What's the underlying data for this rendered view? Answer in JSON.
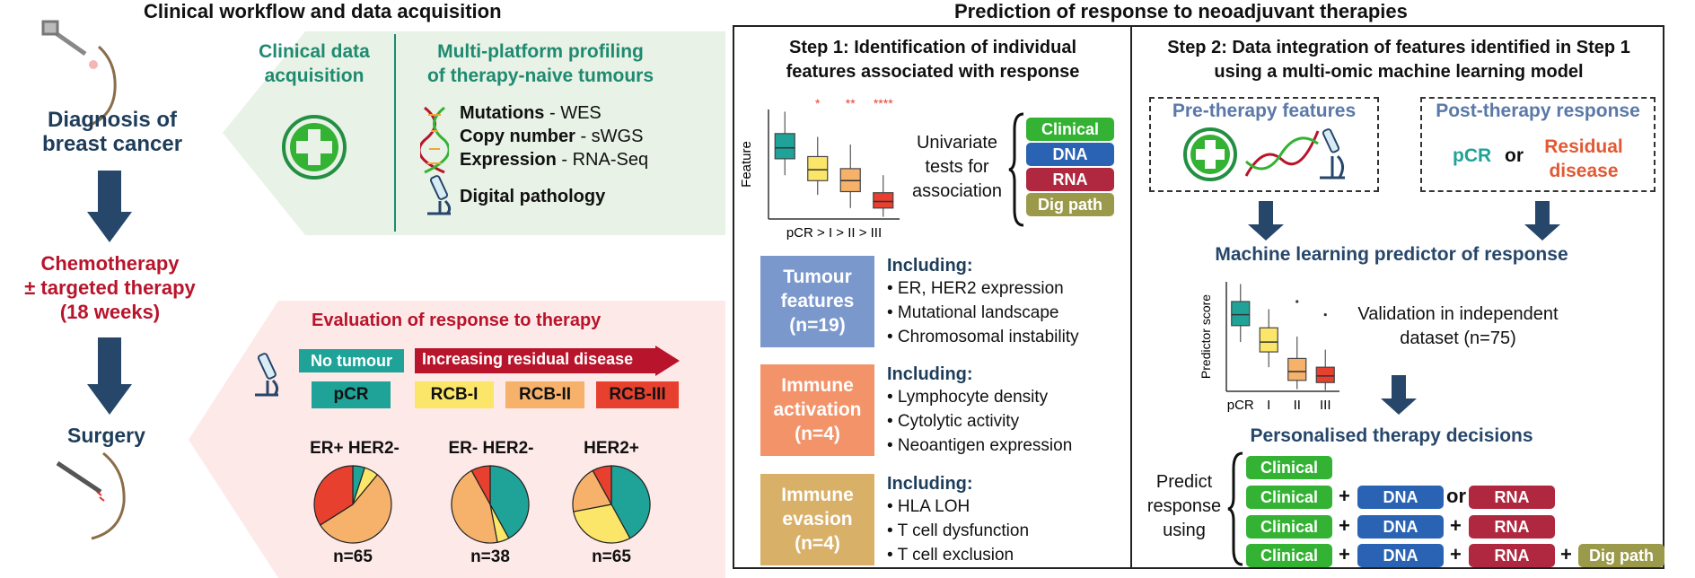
{
  "left": {
    "title": "Clinical workflow and data acquisition",
    "steps": {
      "diagnosis": [
        "Diagnosis of",
        "breast cancer"
      ],
      "chemo": [
        "Chemotherapy",
        "± targeted therapy",
        "(18 weeks)"
      ],
      "surgery": "Surgery"
    },
    "acquisition": {
      "clinical_head": [
        "Clinical data",
        "acquisition"
      ],
      "profiling_head": [
        "Multi-platform profiling",
        "of therapy-naive tumours"
      ],
      "items": [
        {
          "bold": "Mutations",
          "rest": " - WES",
          "icon": "dna-icon"
        },
        {
          "bold": "Copy number",
          "rest": " - sWGS",
          "icon": "dna-icon"
        },
        {
          "bold": "Expression",
          "rest": " - RNA-Seq",
          "icon": "dna-icon"
        },
        {
          "bold": "Digital pathology",
          "rest": "",
          "icon": "microscope-icon"
        }
      ]
    },
    "evaluation": {
      "title": "Evaluation of response to therapy",
      "no_tumour": "No tumour",
      "increasing": "Increasing residual disease",
      "categories": [
        "pCR",
        "RCB-I",
        "RCB-II",
        "RCB-III"
      ],
      "colors": {
        "pCR": "#1fa398",
        "RCB-I": "#fbe66a",
        "RCB-II": "#f6b26b",
        "RCB-III": "#e8402f"
      },
      "pies": [
        {
          "label": "ER+ HER2-",
          "n": "n=65",
          "fractions": [
            0.05,
            0.06,
            0.55,
            0.34
          ]
        },
        {
          "label": "ER- HER2-",
          "n": "n=38",
          "fractions": [
            0.42,
            0.05,
            0.45,
            0.08
          ]
        },
        {
          "label": "HER2+",
          "n": "n=65",
          "fractions": [
            0.42,
            0.3,
            0.2,
            0.08
          ]
        }
      ]
    }
  },
  "right": {
    "title": "Prediction of response to neoadjuvant therapies",
    "step1": {
      "title": [
        "Step 1: Identification of individual",
        "features associated with response"
      ],
      "plot": {
        "ylabel": "Feature",
        "xlabel": "pCR > I  >  II > III",
        "stars": [
          "*",
          "**",
          "****"
        ],
        "boxes": [
          {
            "q1": 0.55,
            "med": 0.65,
            "q3": 0.78,
            "lo": 0.4,
            "hi": 0.98
          },
          {
            "q1": 0.35,
            "med": 0.45,
            "q3": 0.57,
            "lo": 0.22,
            "hi": 0.75
          },
          {
            "q1": 0.25,
            "med": 0.35,
            "q3": 0.46,
            "lo": 0.1,
            "hi": 0.68
          },
          {
            "q1": 0.1,
            "med": 0.16,
            "q3": 0.24,
            "lo": 0.02,
            "hi": 0.4
          }
        ]
      },
      "univariate": [
        "Univariate",
        "tests for",
        "association"
      ],
      "tags": [
        "Clinical",
        "DNA",
        "RNA",
        "Dig path"
      ],
      "groups": [
        {
          "box": [
            "Tumour",
            "features",
            "(n=19)"
          ],
          "color": "#7b98cd",
          "head": "Including:",
          "bullets": [
            "• ER, HER2 expression",
            "• Mutational landscape",
            "• Chromosomal instability"
          ]
        },
        {
          "box": [
            "Immune",
            "activation",
            "(n=4)"
          ],
          "color": "#f3936a",
          "head": "Including:",
          "bullets": [
            "• Lymphocyte density",
            "• Cytolytic activity",
            "• Neoantigen expression"
          ]
        },
        {
          "box": [
            "Immune",
            "evasion",
            "(n=4)"
          ],
          "color": "#d9b068",
          "head": "Including:",
          "bullets": [
            "• HLA LOH",
            "• T cell dysfunction",
            "• T cell exclusion"
          ]
        }
      ]
    },
    "step2": {
      "title": [
        "Step 2: Data integration of features identified in Step 1",
        "using a multi-omic machine learning model"
      ],
      "pre": "Pre-therapy features",
      "post": "Post-therapy response",
      "pcr": "pCR",
      "or": "or",
      "residual": [
        "Residual",
        "disease"
      ],
      "ml_title": "Machine learning predictor of response",
      "plot": {
        "ylabel": "Predictor score",
        "xlabels": [
          "pCR",
          "I",
          "II",
          "III"
        ]
      },
      "validation": [
        "Validation in independent",
        "dataset (n=75)"
      ],
      "personalised": "Personalised therapy decisions",
      "predict": [
        "Predict",
        "response",
        "using"
      ],
      "rows": [
        [
          "Clinical"
        ],
        [
          "Clinical",
          "+",
          "DNA",
          "or",
          "RNA"
        ],
        [
          "Clinical",
          "+",
          "DNA",
          "+",
          "RNA"
        ],
        [
          "Clinical",
          "+",
          "DNA",
          "+",
          "RNA",
          "+",
          "Dig path"
        ]
      ]
    }
  }
}
